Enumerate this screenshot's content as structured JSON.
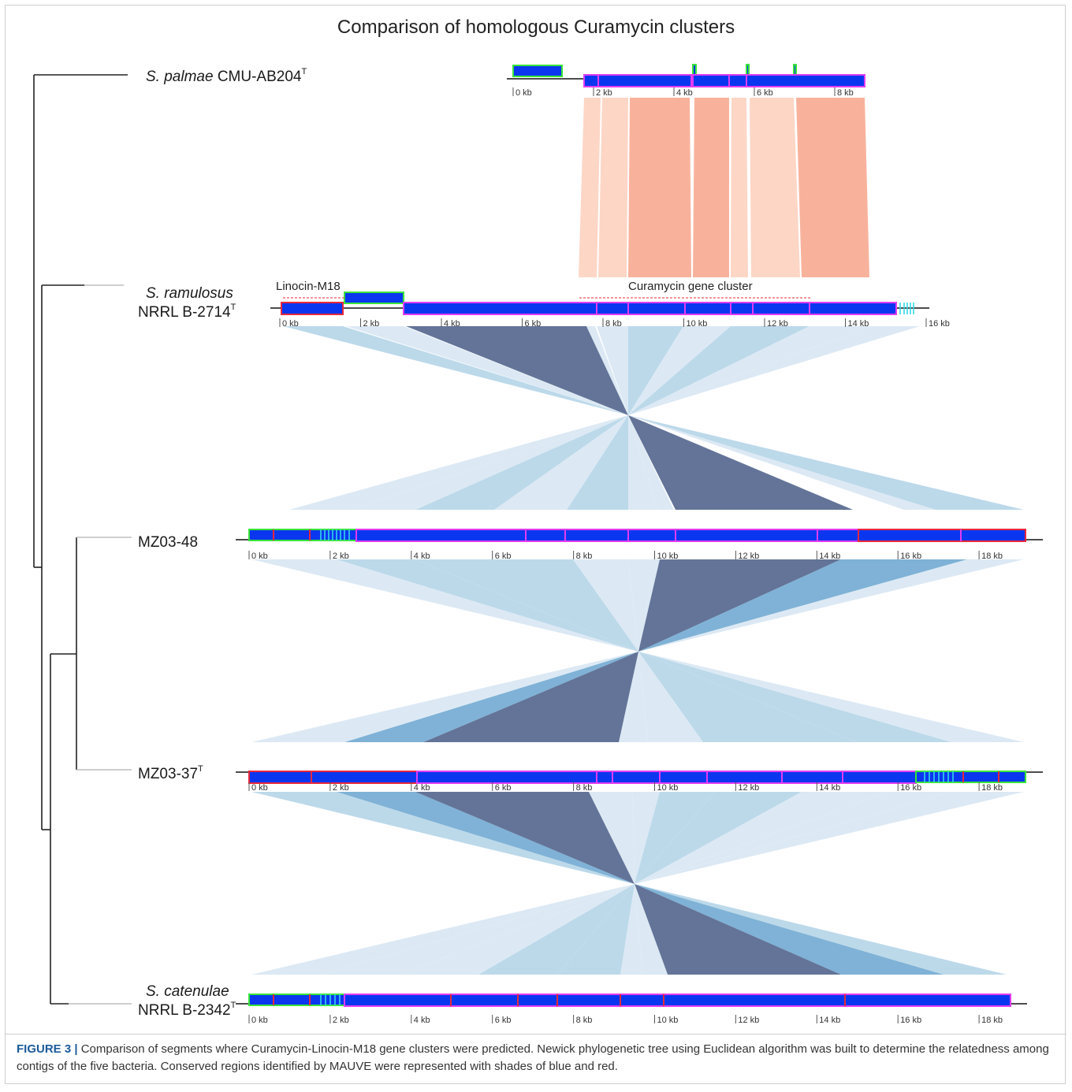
{
  "title": "Comparison of homologous Curamycin clusters",
  "caption": {
    "figure_label": "FIGURE 3 |",
    "text": " Comparison of segments where Curamycin-Linocin-M18 gene clusters were predicted. Newick phylogenetic tree using Euclidean algorithm was built to determine the relatedness among contigs of the five bacteria. Conserved regions identified by MAUVE were represented with shades of blue and red."
  },
  "annotations": {
    "linocin": "Linocin-M18",
    "curamycin": "Curamycin gene cluster"
  },
  "species": [
    {
      "name_italic": "S. palmae",
      "name_rest": "CMU-AB204",
      "superscript": "T"
    },
    {
      "name_italic": "S. ramulosus",
      "name_rest": "NRRL B-2714",
      "superscript": "T"
    },
    {
      "name_italic": "",
      "name_rest": "MZ03-48",
      "superscript": ""
    },
    {
      "name_italic": "",
      "name_rest": "MZ03-37",
      "superscript": "T"
    },
    {
      "name_italic": "S. catenulae",
      "name_rest": "NRRL B-2342",
      "superscript": "T"
    }
  ],
  "scales": [
    {
      "labels": [
        "0 kb",
        "2 kb",
        "4 kb",
        "6 kb",
        "8 kb"
      ]
    },
    {
      "labels": [
        "0 kb",
        "2 kb",
        "4 kb",
        "6 kb",
        "8 kb",
        "10 kb",
        "12 kb",
        "14 kb",
        "16 kb"
      ]
    },
    {
      "labels": [
        "0 kb",
        "2 kb",
        "4 kb",
        "6 kb",
        "8 kb",
        "10 kb",
        "12 kb",
        "14 kb",
        "16 kb",
        "18 kb"
      ]
    },
    {
      "labels": [
        "0 kb",
        "2 kb",
        "4 kb",
        "6 kb",
        "8 kb",
        "10 kb",
        "12 kb",
        "14 kb",
        "16 kb",
        "18 kb"
      ]
    },
    {
      "labels": [
        "0 kb",
        "2 kb",
        "4 kb",
        "6 kb",
        "8 kb",
        "10 kb",
        "12 kb",
        "14 kb",
        "16 kb",
        "18 kb"
      ]
    }
  ],
  "colors": {
    "block_blue": "#0a36f0",
    "outline_magenta": "#e23cf2",
    "outline_red": "#e8283c",
    "outline_green": "#39e43a",
    "link_dark": "#637498",
    "link_mid": "#7fb2d6",
    "link_light": "#bcd9ea",
    "link_pale": "#dce9f4",
    "salmon_dark": "#f8b29c",
    "salmon_light": "#fdd6c6"
  }
}
